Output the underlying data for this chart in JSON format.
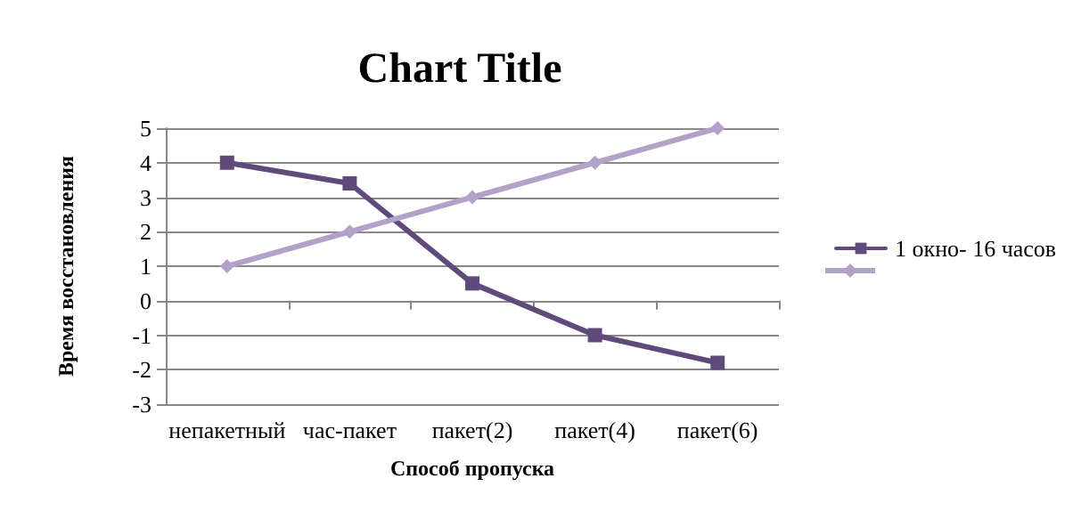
{
  "chart_data": {
    "type": "line",
    "title": "Chart Title",
    "xlabel": "Способ пропуска",
    "ylabel": "Время восстановления",
    "categories": [
      "непакетный",
      "час-пакет",
      "пакет(2)",
      "пакет(4)",
      "пакет(6)"
    ],
    "series": [
      {
        "name": "1 окно- 16 часов",
        "color": "#604a7b",
        "values": [
          4,
          3.4,
          0.5,
          -1,
          -1.8
        ],
        "marker": "square"
      },
      {
        "color": "#b3a2c7",
        "values": [
          1,
          2,
          3,
          4,
          5
        ],
        "marker": "diamond"
      }
    ],
    "ylim": [
      -3,
      5
    ],
    "yticks": [
      -3,
      -2,
      -1,
      0,
      1,
      2,
      3,
      4,
      5
    ],
    "grid": "y",
    "legend": "right",
    "line_style": "solid"
  }
}
